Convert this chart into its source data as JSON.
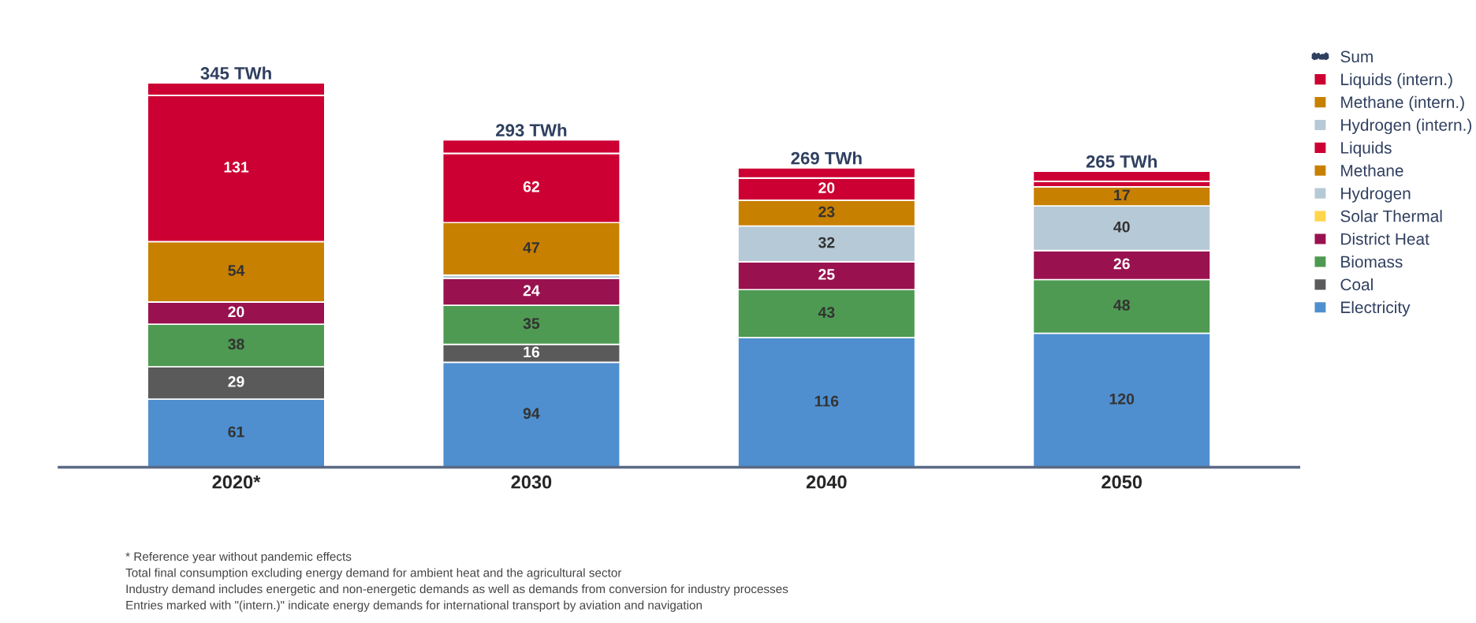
{
  "chart_data": {
    "type": "bar",
    "stacked": true,
    "categories": [
      "2020*",
      "2030",
      "2040",
      "2050"
    ],
    "series": [
      {
        "name": "Electricity",
        "color": "#4f8fcf",
        "values": [
          61,
          94,
          116,
          120
        ],
        "value_labels": [
          "61",
          "94",
          "116",
          "120"
        ]
      },
      {
        "name": "Coal",
        "color": "#5a5a5a",
        "values": [
          29,
          16,
          null,
          null
        ],
        "value_labels": [
          "29",
          "16",
          null,
          null
        ]
      },
      {
        "name": "Biomass",
        "color": "#4e9a52",
        "values": [
          38,
          35,
          43,
          48
        ],
        "value_labels": [
          "38",
          "35",
          "43",
          "48"
        ]
      },
      {
        "name": "District Heat",
        "color": "#99124f",
        "values": [
          20,
          24,
          25,
          26
        ],
        "value_labels": [
          "20",
          "24",
          "25",
          "26"
        ]
      },
      {
        "name": "Solar Thermal",
        "color": "#ffd54a",
        "values": [
          null,
          null,
          null,
          null
        ],
        "value_labels": [
          null,
          null,
          null,
          null
        ]
      },
      {
        "name": "Hydrogen",
        "color": "#b6c9d6",
        "values": [
          null,
          3,
          32,
          40
        ],
        "value_labels": [
          null,
          null,
          "32",
          "40"
        ]
      },
      {
        "name": "Methane",
        "color": "#c88000",
        "values": [
          54,
          47,
          23,
          17
        ],
        "value_labels": [
          "54",
          "47",
          "23",
          "17"
        ]
      },
      {
        "name": "Liquids",
        "color": "#cc0033",
        "values": [
          131,
          62,
          20,
          5
        ],
        "value_labels": [
          "131",
          "62",
          "20",
          null
        ]
      },
      {
        "name": "Hydrogen (intern.)",
        "color": "#b6c9d6",
        "values": [
          null,
          null,
          null,
          null
        ]
      },
      {
        "name": "Methane (intern.)",
        "color": "#c88000",
        "values": [
          null,
          null,
          null,
          null
        ]
      },
      {
        "name": "Liquids (intern.)",
        "color": "#cc0033",
        "values": [
          11,
          12,
          9,
          9
        ]
      },
      {
        "name": "Sum",
        "type": "other",
        "color": "#2f3f5f",
        "values": [
          null,
          null,
          null,
          null
        ]
      }
    ],
    "totals": [
      "345 TWh",
      "293 TWh",
      "269 TWh",
      "265 TWh"
    ],
    "legend": "right",
    "grid": false,
    "annotations": [
      "* Reference year without pandemic effects",
      "Total final consumption excluding energy demand for ambient heat and the agricultural sector",
      "Industry demand includes energetic and non-energetic demands as well as demands from conversion for industry processes",
      "Entries marked with \"(intern.)\" indicate energy demands for international transport by aviation and navigation"
    ]
  }
}
